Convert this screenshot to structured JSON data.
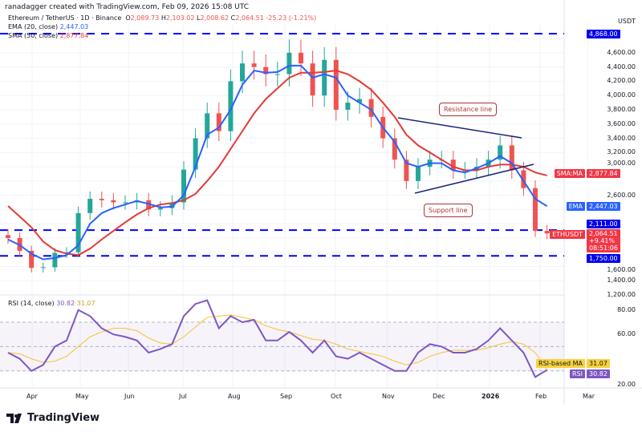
{
  "header": {
    "credit": "ranadagger created with TradingView.com, Feb 09, 2026 15:08 UTC",
    "symbol": "Ethereum / TetherUS · 1D · Binance",
    "o_label": "O",
    "o": "2,089.73",
    "h_label": "H",
    "h": "2,103.02",
    "l_label": "L",
    "l": "2,008.62",
    "c_label": "C",
    "c": "2,064.51",
    "change": "-25.23 (-1.21%)",
    "ema_label": "EMA (20, close)",
    "ema_value": "2,447.03",
    "sma_label": "SMA (50, close)",
    "sma_value": "2,877.84",
    "rsi_label": "RSI (14, close)",
    "rsi_value": "30.82",
    "rsi_ma_value": "31.07"
  },
  "axis": {
    "currency": "USDT",
    "price_ticks": [
      "4,600.00",
      "4,400.00",
      "4,200.00",
      "4,000.00",
      "3,800.00",
      "3,600.00",
      "3,400.00",
      "3,200.00",
      "3,000.00",
      "2,600.00",
      "1,600.00",
      "1,400.00",
      "1,200.00"
    ],
    "rsi_ticks": [
      "80.00",
      "60.00",
      "20.00"
    ],
    "months": [
      "Apr",
      "May",
      "Jun",
      "Jul",
      "Aug",
      "Sep",
      "Oct",
      "Nov",
      "Dec",
      "2026",
      "Feb",
      "Mar"
    ]
  },
  "tags": {
    "level_top": "4,868.00",
    "level_mid": "2,111.00",
    "level_low": "1,750.00",
    "sma_name": "SMA:MA",
    "sma_val": "2,877.84",
    "ema_name": "EMA",
    "ema_val": "2,447.03",
    "price_name": "ETHUSDT",
    "price_val": "2,064.51",
    "price_pct": "+9.41%",
    "countdown": "08:51:06",
    "rsi_ma_name": "RSI-based MA",
    "rsi_ma_val": "31.07",
    "rsi_name": "RSI",
    "rsi_val": "30.82"
  },
  "annotations": {
    "resistance": "Resistance line",
    "support": "Support line"
  },
  "logo": "TradingView",
  "colors": {
    "up": "#26a69a",
    "down": "#ef5350",
    "ema": "#2962ff",
    "sma": "#e53935",
    "level": "#0000ff",
    "rsi": "#7e57c2",
    "rsi_ma": "#f7c32e"
  },
  "chart_data": {
    "type": "candlestick",
    "interval_note": "weekly sampling of daily chart",
    "x": [
      "2025-03-24",
      "2025-03-31",
      "2025-04-07",
      "2025-04-14",
      "2025-04-21",
      "2025-04-28",
      "2025-05-05",
      "2025-05-12",
      "2025-05-19",
      "2025-05-26",
      "2025-06-02",
      "2025-06-09",
      "2025-06-16",
      "2025-06-23",
      "2025-06-30",
      "2025-07-07",
      "2025-07-14",
      "2025-07-21",
      "2025-07-28",
      "2025-08-04",
      "2025-08-11",
      "2025-08-18",
      "2025-08-25",
      "2025-09-01",
      "2025-09-08",
      "2025-09-15",
      "2025-09-22",
      "2025-09-29",
      "2025-10-06",
      "2025-10-13",
      "2025-10-20",
      "2025-10-27",
      "2025-11-03",
      "2025-11-10",
      "2025-11-17",
      "2025-11-24",
      "2025-12-01",
      "2025-12-08",
      "2025-12-15",
      "2025-12-22",
      "2025-12-29",
      "2026-01-05",
      "2026-01-12",
      "2026-01-19",
      "2026-01-26",
      "2026-02-02",
      "2026-02-09"
    ],
    "close": [
      2000,
      1820,
      1580,
      1590,
      1790,
      1800,
      2350,
      2550,
      2530,
      2500,
      2500,
      2530,
      2400,
      2420,
      2500,
      2960,
      3400,
      3750,
      3500,
      4200,
      4450,
      4400,
      4300,
      4300,
      4600,
      4450,
      4000,
      4500,
      3800,
      3900,
      3950,
      3700,
      3400,
      3100,
      2800,
      3000,
      3100,
      3100,
      2950,
      2950,
      3000,
      3100,
      3300,
      2950,
      2700,
      2100,
      2064.51
    ],
    "ema20": [
      1980,
      1900,
      1780,
      1700,
      1720,
      1760,
      1900,
      2200,
      2350,
      2420,
      2470,
      2520,
      2480,
      2430,
      2440,
      2600,
      3000,
      3450,
      3550,
      3800,
      4150,
      4350,
      4320,
      4330,
      4420,
      4420,
      4250,
      4300,
      4250,
      4000,
      3900,
      3800,
      3550,
      3350,
      3050,
      3000,
      3050,
      3050,
      2950,
      2920,
      2980,
      3050,
      3150,
      3050,
      2800,
      2550,
      2447.03
    ],
    "sma50": [
      2450,
      2300,
      2150,
      1950,
      1830,
      1780,
      1760,
      1850,
      1980,
      2100,
      2220,
      2330,
      2420,
      2470,
      2490,
      2530,
      2620,
      2800,
      3000,
      3250,
      3500,
      3750,
      3950,
      4100,
      4250,
      4320,
      4320,
      4330,
      4350,
      4300,
      4200,
      4080,
      3900,
      3700,
      3450,
      3300,
      3200,
      3100,
      3000,
      2950,
      2950,
      3000,
      3030,
      3030,
      3000,
      2920,
      2877.84
    ],
    "rsi": [
      45,
      40,
      30,
      35,
      50,
      55,
      80,
      75,
      65,
      60,
      58,
      55,
      45,
      48,
      52,
      75,
      85,
      88,
      65,
      75,
      70,
      72,
      55,
      55,
      62,
      55,
      45,
      55,
      42,
      40,
      45,
      40,
      35,
      30,
      30,
      45,
      52,
      50,
      45,
      45,
      48,
      55,
      65,
      55,
      45,
      25,
      30.82
    ],
    "rsi_ma": [
      45,
      44,
      40,
      37,
      38,
      42,
      50,
      58,
      62,
      65,
      65,
      63,
      57,
      53,
      52,
      58,
      66,
      74,
      75,
      76,
      74,
      72,
      67,
      64,
      62,
      59,
      56,
      55,
      52,
      48,
      46,
      44,
      42,
      38,
      35,
      37,
      42,
      45,
      47,
      47,
      47,
      49,
      52,
      54,
      52,
      45,
      31.07
    ],
    "horizontal_levels": [
      4868,
      2111,
      1750
    ],
    "trendlines": [
      {
        "label": "Resistance line",
        "from": [
          "2025-11-06",
          3700
        ],
        "to": [
          "2026-01-20",
          3380
        ]
      },
      {
        "label": "Support line",
        "from": [
          "2025-11-17",
          2640
        ],
        "to": [
          "2026-01-27",
          3030
        ]
      }
    ],
    "ylim": [
      1150,
      4950
    ],
    "rsi_ylim": [
      15,
      95
    ]
  }
}
